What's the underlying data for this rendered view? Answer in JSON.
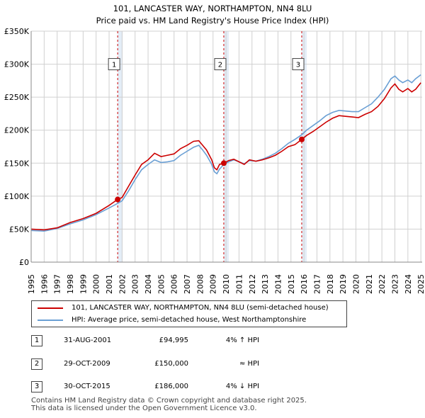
{
  "title": {
    "line1": "101, LANCASTER WAY, NORTHAMPTON, NN4 8LU",
    "line2": "Price paid vs. HM Land Registry's House Price Index (HPI)"
  },
  "colors": {
    "price_line": "#cc0000",
    "hpi_line": "#6a9fd4",
    "grid": "#d0d0d0",
    "marker_vline": "#cc0000",
    "shade": "#dde8f5"
  },
  "chart_data": {
    "type": "line",
    "title": "101, LANCASTER WAY, NORTHAMPTON, NN4 8LU — Price paid vs. HM Land Registry's House Price Index (HPI)",
    "xlabel": "",
    "ylabel": "",
    "xlim": [
      1995,
      2025.1
    ],
    "ylim": [
      0,
      350000
    ],
    "x_ticks": [
      "1995",
      "1996",
      "1997",
      "1998",
      "1999",
      "2000",
      "2001",
      "2002",
      "2003",
      "2004",
      "2005",
      "2006",
      "2007",
      "2008",
      "2009",
      "2010",
      "2011",
      "2012",
      "2013",
      "2014",
      "2015",
      "2016",
      "2017",
      "2018",
      "2019",
      "2020",
      "2021",
      "2022",
      "2023",
      "2024",
      "2025"
    ],
    "y_ticks": [
      {
        "value": 0,
        "label": "£0"
      },
      {
        "value": 50000,
        "label": "£50K"
      },
      {
        "value": 100000,
        "label": "£100K"
      },
      {
        "value": 150000,
        "label": "£150K"
      },
      {
        "value": 200000,
        "label": "£200K"
      },
      {
        "value": 250000,
        "label": "£250K"
      },
      {
        "value": 300000,
        "label": "£300K"
      },
      {
        "value": 350000,
        "label": "£350K"
      }
    ],
    "grid": true,
    "series": [
      {
        "name": "101, LANCASTER WAY, NORTHAMPTON, NN4 8LU (semi-detached house)",
        "color": "#cc0000",
        "points": [
          [
            1995.0,
            50000
          ],
          [
            1996.0,
            49000
          ],
          [
            1997.0,
            52000
          ],
          [
            1998.0,
            60000
          ],
          [
            1999.0,
            66000
          ],
          [
            2000.0,
            74000
          ],
          [
            2001.0,
            86000
          ],
          [
            2001.66,
            94995
          ],
          [
            2002.0,
            98000
          ],
          [
            2002.5,
            115000
          ],
          [
            2003.0,
            132000
          ],
          [
            2003.5,
            148000
          ],
          [
            2004.0,
            155000
          ],
          [
            2004.5,
            165000
          ],
          [
            2005.0,
            160000
          ],
          [
            2005.5,
            162000
          ],
          [
            2006.0,
            164000
          ],
          [
            2006.5,
            172000
          ],
          [
            2007.0,
            177000
          ],
          [
            2007.5,
            183000
          ],
          [
            2007.9,
            184000
          ],
          [
            2008.2,
            177000
          ],
          [
            2008.5,
            170000
          ],
          [
            2008.9,
            155000
          ],
          [
            2009.1,
            143000
          ],
          [
            2009.3,
            140000
          ],
          [
            2009.5,
            148000
          ],
          [
            2009.83,
            150000
          ],
          [
            2010.2,
            154000
          ],
          [
            2010.6,
            156000
          ],
          [
            2011.0,
            152000
          ],
          [
            2011.4,
            148000
          ],
          [
            2011.8,
            155000
          ],
          [
            2012.3,
            153000
          ],
          [
            2012.8,
            155000
          ],
          [
            2013.3,
            158000
          ],
          [
            2013.8,
            162000
          ],
          [
            2014.3,
            168000
          ],
          [
            2014.8,
            175000
          ],
          [
            2015.3,
            178000
          ],
          [
            2015.83,
            186000
          ],
          [
            2016.2,
            192000
          ],
          [
            2016.7,
            198000
          ],
          [
            2017.2,
            205000
          ],
          [
            2017.7,
            212000
          ],
          [
            2018.2,
            218000
          ],
          [
            2018.7,
            222000
          ],
          [
            2019.2,
            221000
          ],
          [
            2019.7,
            220000
          ],
          [
            2020.2,
            219000
          ],
          [
            2020.7,
            224000
          ],
          [
            2021.2,
            228000
          ],
          [
            2021.7,
            236000
          ],
          [
            2022.2,
            248000
          ],
          [
            2022.7,
            264000
          ],
          [
            2023.0,
            270000
          ],
          [
            2023.3,
            262000
          ],
          [
            2023.6,
            258000
          ],
          [
            2024.0,
            263000
          ],
          [
            2024.3,
            258000
          ],
          [
            2024.6,
            262000
          ],
          [
            2025.0,
            272000
          ]
        ]
      },
      {
        "name": "HPI: Average price, semi-detached house, West Northamptonshire",
        "color": "#6a9fd4",
        "points": [
          [
            1995.0,
            48000
          ],
          [
            1996.0,
            47000
          ],
          [
            1997.0,
            51000
          ],
          [
            1998.0,
            58000
          ],
          [
            1999.0,
            64000
          ],
          [
            2000.0,
            72000
          ],
          [
            2001.0,
            82000
          ],
          [
            2001.66,
            89000
          ],
          [
            2002.0,
            93000
          ],
          [
            2002.5,
            108000
          ],
          [
            2003.0,
            125000
          ],
          [
            2003.5,
            140000
          ],
          [
            2004.0,
            148000
          ],
          [
            2004.5,
            155000
          ],
          [
            2005.0,
            151000
          ],
          [
            2005.5,
            152000
          ],
          [
            2006.0,
            154000
          ],
          [
            2006.5,
            162000
          ],
          [
            2007.0,
            168000
          ],
          [
            2007.5,
            174000
          ],
          [
            2007.9,
            177000
          ],
          [
            2008.2,
            170000
          ],
          [
            2008.5,
            162000
          ],
          [
            2008.9,
            148000
          ],
          [
            2009.1,
            137000
          ],
          [
            2009.3,
            134000
          ],
          [
            2009.5,
            141000
          ],
          [
            2009.83,
            148000
          ],
          [
            2010.2,
            152000
          ],
          [
            2010.6,
            155000
          ],
          [
            2011.0,
            152000
          ],
          [
            2011.4,
            149000
          ],
          [
            2011.8,
            154000
          ],
          [
            2012.3,
            153000
          ],
          [
            2012.8,
            156000
          ],
          [
            2013.3,
            160000
          ],
          [
            2013.8,
            165000
          ],
          [
            2014.3,
            172000
          ],
          [
            2014.8,
            180000
          ],
          [
            2015.3,
            186000
          ],
          [
            2015.83,
            193000
          ],
          [
            2016.2,
            200000
          ],
          [
            2016.7,
            207000
          ],
          [
            2017.2,
            214000
          ],
          [
            2017.7,
            222000
          ],
          [
            2018.2,
            227000
          ],
          [
            2018.7,
            230000
          ],
          [
            2019.2,
            229000
          ],
          [
            2019.7,
            228000
          ],
          [
            2020.2,
            228000
          ],
          [
            2020.7,
            234000
          ],
          [
            2021.2,
            240000
          ],
          [
            2021.7,
            250000
          ],
          [
            2022.2,
            262000
          ],
          [
            2022.7,
            278000
          ],
          [
            2023.0,
            282000
          ],
          [
            2023.3,
            276000
          ],
          [
            2023.6,
            272000
          ],
          [
            2024.0,
            276000
          ],
          [
            2024.3,
            272000
          ],
          [
            2024.6,
            278000
          ],
          [
            2025.0,
            284000
          ]
        ]
      }
    ],
    "sales": [
      {
        "label": "1",
        "x": 2001.66,
        "value": 94995
      },
      {
        "label": "2",
        "x": 2009.83,
        "value": 150000
      },
      {
        "label": "3",
        "x": 2015.83,
        "value": 186000
      }
    ],
    "annotation_box_value": 300000
  },
  "legend": {
    "price_label": "101, LANCASTER WAY, NORTHAMPTON, NN4 8LU (semi-detached house)",
    "hpi_label": "HPI: Average price, semi-detached house, West Northamptonshire"
  },
  "sales_table": [
    {
      "num": "1",
      "date": "31-AUG-2001",
      "price": "£94,995",
      "relation": "4% ↑ HPI"
    },
    {
      "num": "2",
      "date": "29-OCT-2009",
      "price": "£150,000",
      "relation": "≈ HPI"
    },
    {
      "num": "3",
      "date": "30-OCT-2015",
      "price": "£186,000",
      "relation": "4% ↓ HPI"
    }
  ],
  "footer": {
    "line1": "Contains HM Land Registry data © Crown copyright and database right 2025.",
    "line2": "This data is licensed under the Open Government Licence v3.0."
  }
}
